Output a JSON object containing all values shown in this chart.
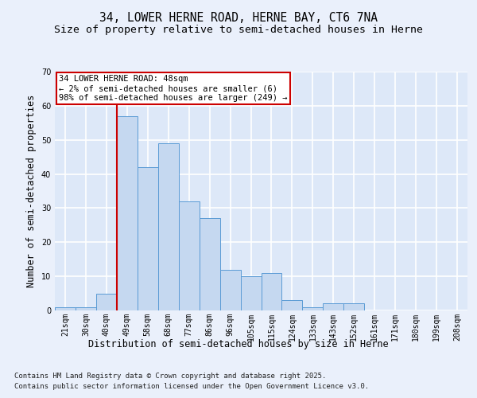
{
  "title_line1": "34, LOWER HERNE ROAD, HERNE BAY, CT6 7NA",
  "title_line2": "Size of property relative to semi-detached houses in Herne",
  "xlabel": "Distribution of semi-detached houses by size in Herne",
  "ylabel": "Number of semi-detached properties",
  "categories": [
    "21sqm",
    "30sqm",
    "40sqm",
    "49sqm",
    "58sqm",
    "68sqm",
    "77sqm",
    "86sqm",
    "96sqm",
    "105sqm",
    "115sqm",
    "124sqm",
    "133sqm",
    "143sqm",
    "152sqm",
    "161sqm",
    "171sqm",
    "180sqm",
    "199sqm",
    "208sqm"
  ],
  "values": [
    1,
    1,
    5,
    57,
    42,
    49,
    32,
    27,
    12,
    10,
    11,
    3,
    1,
    2,
    2,
    0,
    0,
    0,
    0,
    0
  ],
  "bar_color": "#c5d8f0",
  "bar_edge_color": "#5b9bd5",
  "background_color": "#dde8f8",
  "grid_color": "#ffffff",
  "fig_background_color": "#eaf0fb",
  "redline_bin_index": 3,
  "annotation_title": "34 LOWER HERNE ROAD: 48sqm",
  "annotation_line1": "← 2% of semi-detached houses are smaller (6)",
  "annotation_line2": "98% of semi-detached houses are larger (249) →",
  "annotation_box_color": "#ffffff",
  "annotation_border_color": "#cc0000",
  "redline_color": "#cc0000",
  "ylim": [
    0,
    70
  ],
  "yticks": [
    0,
    10,
    20,
    30,
    40,
    50,
    60,
    70
  ],
  "footer_line1": "Contains HM Land Registry data © Crown copyright and database right 2025.",
  "footer_line2": "Contains public sector information licensed under the Open Government Licence v3.0.",
  "title_fontsize": 10.5,
  "subtitle_fontsize": 9.5,
  "axis_label_fontsize": 8.5,
  "tick_fontsize": 7,
  "annotation_fontsize": 7.5,
  "footer_fontsize": 6.5
}
